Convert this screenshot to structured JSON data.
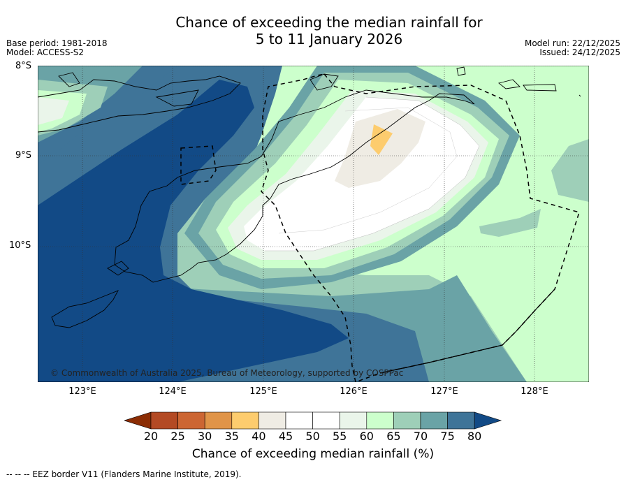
{
  "title": {
    "line1": "Chance of exceeding the median rainfall for",
    "line2": "5 to 11 January 2026"
  },
  "meta": {
    "base_period": "Base period: 1981-2018",
    "model": "Model: ACCESS-S2",
    "model_run": "Model run: 22/12/2025",
    "issued": "Issued: 24/12/2025"
  },
  "axes": {
    "lat_labels": [
      "8°S",
      "9°S",
      "10°S"
    ],
    "lon_labels": [
      "123°E",
      "124°E",
      "125°E",
      "126°E",
      "127°E",
      "128°E"
    ]
  },
  "copyright": "© Commonwealth of Australia 2025, Bureau of Meteorology, supported by COSPPac",
  "colorbar": {
    "ticks": [
      "20",
      "25",
      "30",
      "35",
      "40",
      "45",
      "50",
      "55",
      "60",
      "65",
      "70",
      "75",
      "80"
    ],
    "colors": [
      "#8c2d04",
      "#b34a24",
      "#cc6633",
      "#e09448",
      "#fdcc6e",
      "#efece4",
      "#ffffff",
      "#ffffff",
      "#eaf5ea",
      "#ccffcc",
      "#9ecfb8",
      "#6aa3a6",
      "#3f7498",
      "#124a86"
    ],
    "label": "Chance of exceeding median rainfall (%)"
  },
  "footnote": "--  --  -- EEZ border V11 (Flanders Marine Institute, 2019)."
}
